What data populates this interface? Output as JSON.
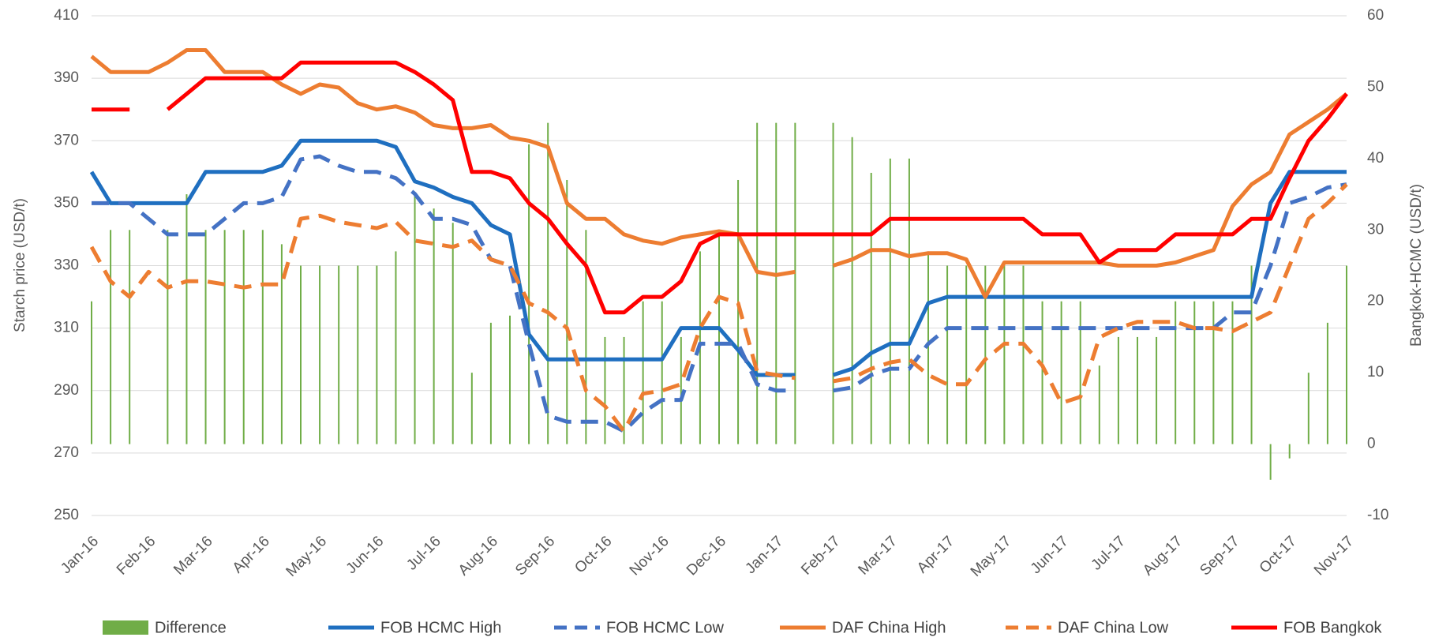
{
  "chart_data": {
    "type": "line",
    "y_label": "Starch price (USD/t)",
    "y2_label": "Bangkok-HCMC (USD/t)",
    "categories": [
      "Jan-16",
      null,
      null,
      "Feb-16",
      null,
      null,
      "Mar-16",
      null,
      null,
      "Apr-16",
      null,
      null,
      "May-16",
      null,
      null,
      "Jun-16",
      null,
      null,
      "Jul-16",
      null,
      null,
      "Aug-16",
      null,
      null,
      "Sep-16",
      null,
      null,
      "Oct-16",
      null,
      null,
      "Nov-16",
      null,
      null,
      "Dec-16",
      null,
      null,
      "Jan-17",
      null,
      null,
      "Feb-17",
      null,
      null,
      "Mar-17",
      null,
      null,
      "Apr-17",
      null,
      null,
      "May-17",
      null,
      null,
      "Jun-17",
      null,
      null,
      "Jul-17",
      null,
      null,
      "Aug-17",
      null,
      null,
      "Sep-17",
      null,
      null,
      "Oct-17",
      null,
      null,
      "Nov-17"
    ],
    "ylim": [
      250,
      410
    ],
    "yticks": [
      250,
      270,
      290,
      310,
      330,
      350,
      370,
      390,
      410
    ],
    "y2lim": [
      -10,
      60
    ],
    "y2ticks": [
      -10,
      0,
      10,
      20,
      30,
      40,
      50,
      60
    ],
    "grid": true,
    "legend": "bottom",
    "series": [
      {
        "name": "Difference",
        "type": "bar",
        "axis": "y2",
        "color": "#70ad47",
        "values": [
          20,
          30,
          30,
          null,
          30,
          35,
          30,
          30,
          30,
          30,
          28,
          25,
          25,
          25,
          25,
          25,
          27,
          35,
          33,
          31,
          10,
          17,
          18,
          42,
          45,
          37,
          30,
          15,
          15,
          20,
          20,
          15,
          27,
          30,
          37,
          45,
          45,
          45,
          null,
          45,
          43,
          38,
          40,
          40,
          27,
          25,
          25,
          25,
          25,
          25,
          20,
          20,
          20,
          11,
          15,
          15,
          15,
          20,
          20,
          20,
          20,
          25,
          -5,
          -2,
          10,
          17,
          25
        ]
      },
      {
        "name": "FOB HCMC High",
        "color": "#1f6fc0",
        "dashed": false,
        "values": [
          360,
          350,
          350,
          350,
          350,
          350,
          360,
          360,
          360,
          360,
          362,
          370,
          370,
          370,
          370,
          370,
          368,
          357,
          355,
          352,
          350,
          343,
          340,
          308,
          300,
          300,
          300,
          300,
          300,
          300,
          300,
          310,
          310,
          310,
          303,
          295,
          295,
          295,
          null,
          295,
          297,
          302,
          305,
          305,
          318,
          320,
          320,
          320,
          320,
          320,
          320,
          320,
          320,
          320,
          320,
          320,
          320,
          320,
          320,
          320,
          320,
          320,
          350,
          360,
          360,
          360,
          360
        ]
      },
      {
        "name": "FOB HCMC Low",
        "color": "#4472c4",
        "dashed": true,
        "values": [
          350,
          350,
          350,
          345,
          340,
          340,
          340,
          345,
          350,
          350,
          352,
          364,
          365,
          362,
          360,
          360,
          358,
          353,
          345,
          345,
          343,
          332,
          330,
          305,
          282,
          280,
          280,
          280,
          277,
          283,
          287,
          287,
          305,
          305,
          305,
          292,
          290,
          290,
          null,
          290,
          291,
          295,
          297,
          297,
          305,
          310,
          310,
          310,
          310,
          310,
          310,
          310,
          310,
          310,
          310,
          310,
          310,
          310,
          310,
          310,
          315,
          315,
          330,
          350,
          352,
          355,
          356
        ]
      },
      {
        "name": "DAF China High",
        "color": "#ed7d31",
        "dashed": false,
        "values": [
          397,
          392,
          392,
          392,
          395,
          399,
          399,
          392,
          392,
          392,
          388,
          385,
          388,
          387,
          382,
          380,
          381,
          379,
          375,
          374,
          374,
          375,
          371,
          370,
          368,
          350,
          345,
          345,
          340,
          338,
          337,
          339,
          340,
          341,
          340,
          328,
          327,
          328,
          null,
          330,
          332,
          335,
          335,
          333,
          334,
          334,
          332,
          320,
          331,
          331,
          331,
          331,
          331,
          331,
          330,
          330,
          330,
          331,
          333,
          335,
          349,
          356,
          360,
          372,
          376,
          380,
          385
        ]
      },
      {
        "name": "DAF China Low",
        "color": "#ed7d31",
        "dashed": true,
        "values": [
          336,
          325,
          320,
          328,
          323,
          325,
          325,
          324,
          323,
          324,
          324,
          345,
          346,
          344,
          343,
          342,
          344,
          338,
          337,
          336,
          338,
          332,
          330,
          318,
          315,
          310,
          290,
          285,
          277,
          289,
          290,
          292,
          310,
          320,
          318,
          296,
          295,
          294,
          null,
          293,
          294,
          297,
          299,
          300,
          295,
          292,
          292,
          300,
          305,
          305,
          298,
          286,
          288,
          307,
          310,
          312,
          312,
          312,
          310,
          310,
          309,
          312,
          315,
          330,
          345,
          350,
          356
        ]
      },
      {
        "name": "FOB Bangkok",
        "color": "#ff0000",
        "dashed": false,
        "values": [
          380,
          380,
          380,
          null,
          380,
          385,
          390,
          390,
          390,
          390,
          390,
          395,
          395,
          395,
          395,
          395,
          395,
          392,
          388,
          383,
          360,
          360,
          358,
          350,
          345,
          337,
          330,
          315,
          315,
          320,
          320,
          325,
          337,
          340,
          340,
          340,
          340,
          340,
          340,
          340,
          340,
          340,
          345,
          345,
          345,
          345,
          345,
          345,
          345,
          345,
          340,
          340,
          340,
          331,
          335,
          335,
          335,
          340,
          340,
          340,
          340,
          345,
          345,
          358,
          370,
          377,
          385
        ]
      }
    ]
  }
}
